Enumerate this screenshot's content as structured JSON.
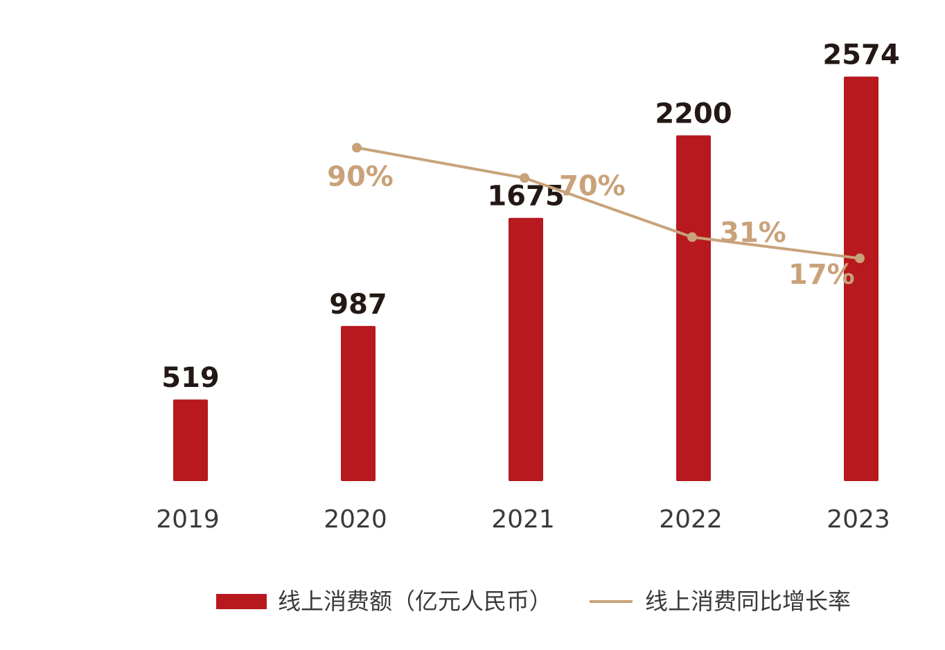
{
  "chart_data": {
    "type": "bar",
    "categories": [
      "2019",
      "2020",
      "2021",
      "2022",
      "2023"
    ],
    "series": [
      {
        "name": "线上消费额（亿元人民币）",
        "type": "bar",
        "values": [
          519,
          987,
          1675,
          2200,
          2574
        ],
        "labels": [
          "519",
          "987",
          "1675",
          "2200",
          "2574"
        ],
        "color": "#b7191f"
      },
      {
        "name": "线上消费同比增长率",
        "type": "line",
        "values": [
          null,
          90,
          70,
          31,
          17
        ],
        "labels": [
          null,
          "90%",
          "70%",
          "31%",
          "17%"
        ],
        "color": "#c9a27a",
        "ylim": [
          -130,
          150
        ]
      }
    ],
    "ylim": [
      0,
      2700
    ],
    "title": "",
    "xlabel": "",
    "ylabel": "",
    "grid": false,
    "legend_position": "bottom-right"
  },
  "label_color": "#231815",
  "axis_text_color": "#3a3a3a"
}
